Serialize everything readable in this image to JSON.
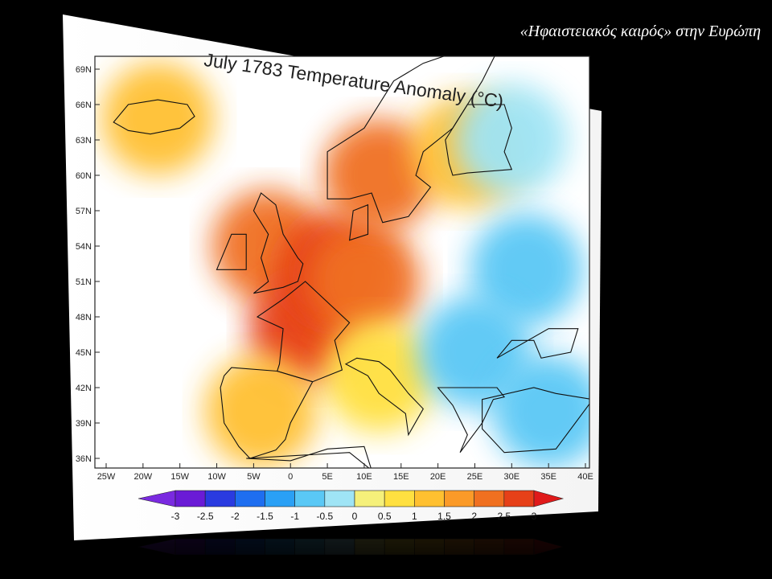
{
  "slide": {
    "title": "«Ηφαιστειακός καιρός» στην Ευρώπη"
  },
  "chart_data": {
    "type": "heatmap",
    "title": "July 1783 Temperature Anomaly (°C)",
    "x_ticks": [
      "25W",
      "20W",
      "15W",
      "10W",
      "5W",
      "0",
      "5E",
      "10E",
      "15E",
      "20E",
      "25E",
      "30E",
      "35E",
      "40E"
    ],
    "y_ticks": [
      "69N",
      "66N",
      "63N",
      "60N",
      "57N",
      "54N",
      "51N",
      "48N",
      "45N",
      "42N",
      "39N",
      "36N"
    ],
    "colorbar": {
      "labels": [
        "-3",
        "-2.5",
        "-2",
        "-1.5",
        "-1",
        "-0.5",
        "0",
        "0.5",
        "1",
        "1.5",
        "2",
        "2.5",
        "3"
      ],
      "colors": [
        "#6a1bd6",
        "#2a3be0",
        "#1e6ef0",
        "#2aa0f5",
        "#5ac8f5",
        "#9fe4f5",
        "#f5f07a",
        "#ffe040",
        "#ffc030",
        "#fb9a28",
        "#f07020",
        "#e64018"
      ],
      "min_color": "#7a2ae0",
      "max_color": "#e01a1a"
    },
    "regions": [
      {
        "lon": -18,
        "lat": 64.8,
        "anomaly": 1.3
      },
      {
        "lon": -3,
        "lat": 54,
        "anomaly": 2.3
      },
      {
        "lon": 2,
        "lat": 47,
        "anomaly": 3.0
      },
      {
        "lon": 6,
        "lat": 52,
        "anomaly": 3.0
      },
      {
        "lon": -4,
        "lat": 40,
        "anomaly": 1.0
      },
      {
        "lon": 10,
        "lat": 51,
        "anomaly": 2.0
      },
      {
        "lon": 12,
        "lat": 43,
        "anomaly": 0.8
      },
      {
        "lon": 12,
        "lat": 60,
        "anomaly": 2.0
      },
      {
        "lon": 24,
        "lat": 62,
        "anomaly": 1.2
      },
      {
        "lon": 30,
        "lat": 63,
        "anomaly": -0.4
      },
      {
        "lon": 32,
        "lat": 52,
        "anomaly": -0.8
      },
      {
        "lon": 25,
        "lat": 45,
        "anomaly": -0.6
      },
      {
        "lon": 35,
        "lat": 40,
        "anomaly": -1.0
      }
    ]
  }
}
